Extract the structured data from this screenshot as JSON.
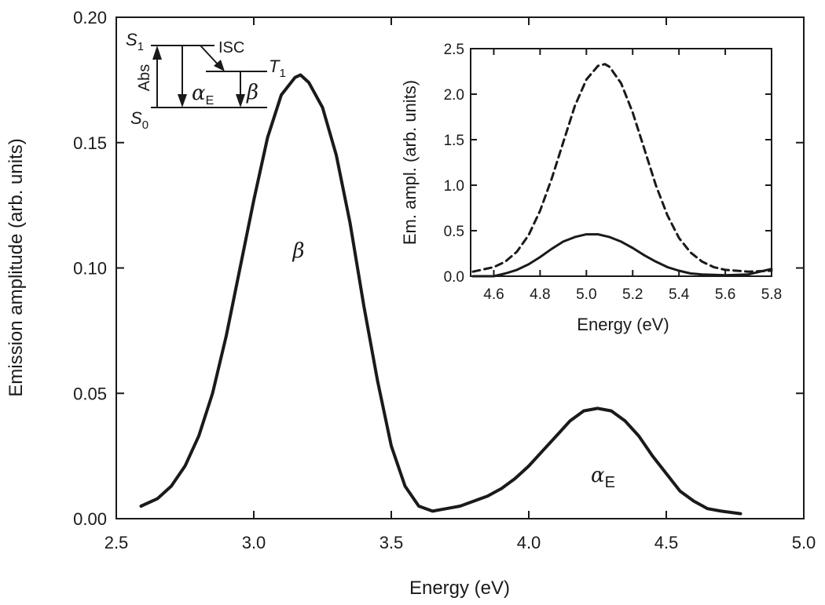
{
  "chart_data": [
    {
      "type": "line",
      "panel": "main",
      "title": "",
      "xlabel": "Energy (eV)",
      "ylabel": "Emission amplitude (arb. units)",
      "xlim": [
        2.5,
        5.0
      ],
      "ylim": [
        0.0,
        0.2
      ],
      "xticks": [
        2.5,
        3.0,
        3.5,
        4.0,
        4.5,
        5.0
      ],
      "xtick_labels": [
        "2.5",
        "3.0",
        "3.5",
        "4.0",
        "4.5",
        "5.0"
      ],
      "yticks": [
        0.0,
        0.05,
        0.1,
        0.15,
        0.2
      ],
      "ytick_labels": [
        "0.00",
        "0.05",
        "0.10",
        "0.15",
        "0.20"
      ],
      "grid": false,
      "series": [
        {
          "name": "emission spectrum",
          "style": "solid",
          "x": [
            2.59,
            2.65,
            2.7,
            2.75,
            2.8,
            2.85,
            2.9,
            2.95,
            3.0,
            3.05,
            3.1,
            3.15,
            3.17,
            3.2,
            3.25,
            3.3,
            3.35,
            3.4,
            3.45,
            3.5,
            3.55,
            3.6,
            3.65,
            3.7,
            3.75,
            3.8,
            3.85,
            3.9,
            3.95,
            4.0,
            4.05,
            4.1,
            4.15,
            4.2,
            4.25,
            4.3,
            4.35,
            4.4,
            4.45,
            4.5,
            4.55,
            4.6,
            4.65,
            4.7,
            4.77
          ],
          "y": [
            0.005,
            0.008,
            0.013,
            0.021,
            0.033,
            0.05,
            0.073,
            0.1,
            0.127,
            0.152,
            0.169,
            0.176,
            0.177,
            0.174,
            0.164,
            0.145,
            0.118,
            0.085,
            0.055,
            0.029,
            0.013,
            0.005,
            0.003,
            0.004,
            0.005,
            0.007,
            0.009,
            0.012,
            0.016,
            0.021,
            0.027,
            0.033,
            0.039,
            0.043,
            0.044,
            0.043,
            0.039,
            0.033,
            0.025,
            0.018,
            0.011,
            0.007,
            0.004,
            0.003,
            0.002
          ]
        }
      ],
      "annotations": [
        {
          "text": "β",
          "x": 3.15,
          "y": 0.105,
          "kind": "peak-label"
        },
        {
          "text": "α",
          "subscript": "E",
          "x": 4.25,
          "y": 0.017,
          "kind": "peak-label"
        }
      ],
      "energy_level_diagram": {
        "levels": [
          "S",
          "T",
          "S"
        ],
        "level_subscripts": [
          "1",
          "1",
          "0"
        ],
        "transitions": [
          "Abs",
          "ISC",
          "α",
          "β"
        ],
        "transition_subscripts": [
          "",
          "",
          "E",
          ""
        ]
      }
    },
    {
      "type": "line",
      "panel": "inset",
      "title": "",
      "xlabel": "Energy (eV)",
      "ylabel": "Em. ampl. (arb. units)",
      "xlim": [
        4.5,
        5.8
      ],
      "ylim": [
        0.0,
        2.5
      ],
      "xticks": [
        4.6,
        4.8,
        5.0,
        5.2,
        5.4,
        5.6,
        5.8
      ],
      "xtick_labels": [
        "4.6",
        "4.8",
        "5.0",
        "5.2",
        "5.4",
        "5.6",
        "5.8"
      ],
      "yticks": [
        0.0,
        0.5,
        1.0,
        1.5,
        2.0,
        2.5
      ],
      "ytick_labels": [
        "0.0",
        "0.5",
        "1.0",
        "1.5",
        "2.0",
        "2.5"
      ],
      "grid": false,
      "series": [
        {
          "name": "dashed",
          "style": "dashed",
          "x": [
            4.51,
            4.6,
            4.65,
            4.7,
            4.75,
            4.8,
            4.85,
            4.9,
            4.95,
            5.0,
            5.05,
            5.08,
            5.1,
            5.15,
            5.2,
            5.25,
            5.3,
            5.35,
            5.4,
            5.45,
            5.5,
            5.55,
            5.6,
            5.7,
            5.8
          ],
          "y": [
            0.05,
            0.1,
            0.16,
            0.27,
            0.45,
            0.72,
            1.07,
            1.47,
            1.87,
            2.16,
            2.31,
            2.33,
            2.3,
            2.12,
            1.8,
            1.4,
            1.0,
            0.67,
            0.42,
            0.26,
            0.16,
            0.1,
            0.07,
            0.05,
            0.06
          ]
        },
        {
          "name": "solid",
          "style": "solid",
          "x": [
            4.51,
            4.6,
            4.65,
            4.7,
            4.75,
            4.8,
            4.85,
            4.9,
            4.95,
            5.0,
            5.05,
            5.1,
            5.15,
            5.2,
            5.25,
            5.3,
            5.35,
            5.4,
            5.45,
            5.5,
            5.6,
            5.7,
            5.8
          ],
          "y": [
            0.0,
            0.0,
            0.03,
            0.07,
            0.13,
            0.21,
            0.3,
            0.38,
            0.43,
            0.46,
            0.46,
            0.43,
            0.38,
            0.31,
            0.23,
            0.16,
            0.1,
            0.06,
            0.03,
            0.02,
            0.01,
            0.02,
            0.08
          ]
        }
      ]
    }
  ]
}
